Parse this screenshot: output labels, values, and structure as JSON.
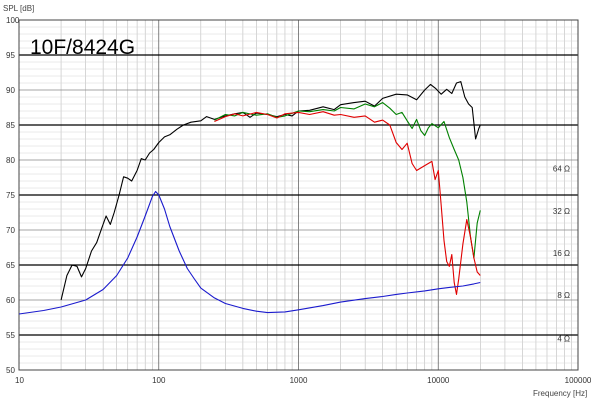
{
  "chart_data": {
    "type": "line",
    "title": "10F/8424G",
    "ylabel": "SPL [dB]",
    "xlabel": "Frequency [Hz]",
    "x_scale": "log",
    "xlim": [
      10,
      100000
    ],
    "ylim": [
      50,
      100
    ],
    "y_ticks": [
      "50",
      "55",
      "60",
      "65",
      "70",
      "75",
      "80",
      "85",
      "90",
      "95",
      "100"
    ],
    "x_ticks": [
      {
        "value": 10,
        "label": "10"
      },
      {
        "value": 100,
        "label": "100"
      },
      {
        "value": 1000,
        "label": "1000"
      },
      {
        "value": 10000,
        "label": "10000"
      },
      {
        "value": 100000,
        "label": "100000"
      }
    ],
    "right_axis": {
      "unit": "Ω",
      "ticks": [
        {
          "label": "4 Ω",
          "at_db": 54.5
        },
        {
          "label": "8 Ω",
          "at_db": 60.7
        },
        {
          "label": "16 Ω",
          "at_db": 66.7
        },
        {
          "label": "32 Ω",
          "at_db": 72.7
        },
        {
          "label": "64 Ω",
          "at_db": 78.8
        }
      ]
    },
    "grid": true,
    "colors": {
      "black_series": "#000000",
      "green_series": "#008000",
      "red_series": "#e00000",
      "impedance": "#1a1acd",
      "major_grid": "#000000",
      "minor_grid": "#bbbbbb"
    },
    "series": [
      {
        "color_key": "black_series",
        "points": [
          [
            20,
            60
          ],
          [
            22,
            63.5
          ],
          [
            24,
            65
          ],
          [
            26,
            64.8
          ],
          [
            28,
            63.3
          ],
          [
            30,
            64.5
          ],
          [
            33,
            67
          ],
          [
            36,
            68.2
          ],
          [
            39,
            70.2
          ],
          [
            42,
            72
          ],
          [
            45,
            70.8
          ],
          [
            48,
            72.5
          ],
          [
            52,
            75
          ],
          [
            56,
            77.6
          ],
          [
            60,
            77.4
          ],
          [
            64,
            77
          ],
          [
            70,
            78.5
          ],
          [
            75,
            80.2
          ],
          [
            80,
            80
          ],
          [
            86,
            81
          ],
          [
            92,
            81.5
          ],
          [
            100,
            82.5
          ],
          [
            110,
            83.3
          ],
          [
            120,
            83.6
          ],
          [
            135,
            84.4
          ],
          [
            150,
            85
          ],
          [
            170,
            85.4
          ],
          [
            200,
            85.6
          ],
          [
            220,
            86.2
          ],
          [
            250,
            85.8
          ],
          [
            300,
            86.3
          ],
          [
            350,
            86.6
          ],
          [
            400,
            86.8
          ],
          [
            450,
            86.1
          ],
          [
            500,
            86.7
          ],
          [
            600,
            86.5
          ],
          [
            700,
            86.2
          ],
          [
            800,
            86.5
          ],
          [
            900,
            86.3
          ],
          [
            1000,
            87
          ],
          [
            1200,
            87.1
          ],
          [
            1500,
            87.6
          ],
          [
            1800,
            87.2
          ],
          [
            2000,
            87.9
          ],
          [
            2500,
            88.2
          ],
          [
            3000,
            88.4
          ],
          [
            3500,
            87.7
          ],
          [
            4000,
            88.8
          ],
          [
            5000,
            89.4
          ],
          [
            6000,
            89.3
          ],
          [
            7000,
            88.6
          ],
          [
            8000,
            90
          ],
          [
            8800,
            90.8
          ],
          [
            9600,
            90.2
          ],
          [
            10500,
            89.4
          ],
          [
            11500,
            90.1
          ],
          [
            12500,
            89.5
          ],
          [
            13500,
            91
          ],
          [
            14500,
            91.2
          ],
          [
            15500,
            89
          ],
          [
            16500,
            88
          ],
          [
            17500,
            87.5
          ],
          [
            18500,
            83
          ],
          [
            19500,
            84.5
          ],
          [
            20000,
            85
          ]
        ]
      },
      {
        "color_key": "green_series",
        "points": [
          [
            250,
            85.7
          ],
          [
            300,
            86.5
          ],
          [
            350,
            86.3
          ],
          [
            400,
            86.8
          ],
          [
            500,
            86.4
          ],
          [
            600,
            86.6
          ],
          [
            700,
            86.1
          ],
          [
            800,
            86.3
          ],
          [
            1000,
            87
          ],
          [
            1200,
            86.9
          ],
          [
            1500,
            87.2
          ],
          [
            1800,
            87
          ],
          [
            2000,
            87.5
          ],
          [
            2500,
            87.3
          ],
          [
            3000,
            88
          ],
          [
            3500,
            87.6
          ],
          [
            4000,
            88.2
          ],
          [
            4500,
            87.4
          ],
          [
            5000,
            86.5
          ],
          [
            5500,
            86.8
          ],
          [
            6000,
            85.6
          ],
          [
            6500,
            84.5
          ],
          [
            7000,
            85.8
          ],
          [
            7500,
            84.2
          ],
          [
            8000,
            83.5
          ],
          [
            8500,
            84.6
          ],
          [
            9000,
            85.2
          ],
          [
            10000,
            84.6
          ],
          [
            11000,
            85.5
          ],
          [
            12000,
            83.2
          ],
          [
            13000,
            81.5
          ],
          [
            14000,
            80
          ],
          [
            15000,
            77.5
          ],
          [
            16000,
            74
          ],
          [
            17000,
            69
          ],
          [
            18000,
            66
          ],
          [
            19000,
            71
          ],
          [
            20000,
            72.8
          ]
        ]
      },
      {
        "color_key": "red_series",
        "points": [
          [
            250,
            85.5
          ],
          [
            300,
            86.2
          ],
          [
            350,
            86.6
          ],
          [
            400,
            86.3
          ],
          [
            500,
            86.8
          ],
          [
            600,
            86.5
          ],
          [
            700,
            86
          ],
          [
            800,
            86.6
          ],
          [
            1000,
            86.8
          ],
          [
            1200,
            86.5
          ],
          [
            1500,
            86.9
          ],
          [
            1800,
            86.4
          ],
          [
            2000,
            86.5
          ],
          [
            2500,
            86.1
          ],
          [
            3000,
            86.3
          ],
          [
            3500,
            85.4
          ],
          [
            4000,
            85.7
          ],
          [
            4500,
            85
          ],
          [
            5000,
            82.5
          ],
          [
            5500,
            81.5
          ],
          [
            6000,
            82.4
          ],
          [
            6500,
            79.5
          ],
          [
            7000,
            78.5
          ],
          [
            8000,
            79.2
          ],
          [
            9000,
            79.8
          ],
          [
            9500,
            77.2
          ],
          [
            10000,
            78.5
          ],
          [
            10500,
            73.5
          ],
          [
            11000,
            68.5
          ],
          [
            11500,
            65.5
          ],
          [
            12000,
            64.8
          ],
          [
            12500,
            66.5
          ],
          [
            13000,
            62.5
          ],
          [
            13500,
            60.8
          ],
          [
            14000,
            63
          ],
          [
            15000,
            68
          ],
          [
            16000,
            71.5
          ],
          [
            17000,
            69
          ],
          [
            18000,
            66
          ],
          [
            19000,
            64
          ],
          [
            20000,
            63.5
          ]
        ]
      },
      {
        "color_key": "impedance",
        "points": [
          [
            10,
            58
          ],
          [
            15,
            58.5
          ],
          [
            20,
            59
          ],
          [
            30,
            60
          ],
          [
            40,
            61.5
          ],
          [
            50,
            63.5
          ],
          [
            60,
            66
          ],
          [
            70,
            69
          ],
          [
            80,
            72
          ],
          [
            90,
            74.8
          ],
          [
            95,
            75.5
          ],
          [
            100,
            75
          ],
          [
            110,
            73
          ],
          [
            120,
            70.5
          ],
          [
            140,
            67
          ],
          [
            160,
            64.5
          ],
          [
            180,
            63
          ],
          [
            200,
            61.7
          ],
          [
            250,
            60.3
          ],
          [
            300,
            59.5
          ],
          [
            400,
            58.8
          ],
          [
            500,
            58.4
          ],
          [
            600,
            58.2
          ],
          [
            800,
            58.3
          ],
          [
            1000,
            58.6
          ],
          [
            1500,
            59.2
          ],
          [
            2000,
            59.7
          ],
          [
            3000,
            60.2
          ],
          [
            4000,
            60.5
          ],
          [
            5000,
            60.8
          ],
          [
            6000,
            61
          ],
          [
            8000,
            61.3
          ],
          [
            10000,
            61.6
          ],
          [
            12000,
            61.8
          ],
          [
            15000,
            62
          ],
          [
            18000,
            62.3
          ],
          [
            20000,
            62.5
          ]
        ]
      }
    ]
  }
}
